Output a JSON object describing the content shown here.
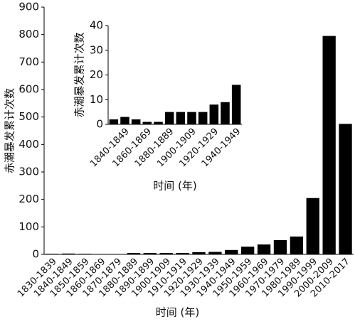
{
  "chart_data": [
    {
      "type": "bar",
      "xlabel": "时间 (年)",
      "ylabel": "赤潮暴发累计次数",
      "color": "#000000",
      "categories": [
        "1830-1839",
        "1840-1849",
        "1850-1859",
        "1860-1869",
        "1870-1879",
        "1880-1889",
        "1890-1899",
        "1900-1909",
        "1910-1919",
        "1920-1929",
        "1930-1939",
        "1940-1949",
        "1950-1959",
        "1960-1969",
        "1970-1979",
        "1980-1989",
        "1990-1999",
        "2000-2009",
        "2010-2017"
      ],
      "values": [
        2,
        3,
        2,
        1,
        1,
        5,
        5,
        5,
        5,
        8,
        9,
        16,
        28,
        36,
        52,
        65,
        205,
        795,
        475
      ],
      "ylim": [
        0,
        900
      ],
      "yticks": [
        0,
        100,
        200,
        300,
        400,
        500,
        600,
        700,
        800,
        900
      ]
    },
    {
      "type": "bar",
      "xlabel": "时间 (年)",
      "ylabel": "赤潮暴发累计次数",
      "color": "#000000",
      "categories": [
        null,
        "1840-1849",
        null,
        "1860-1869",
        null,
        "1880-1889",
        null,
        "1900-1909",
        null,
        "1920-1929",
        null,
        "1940-1949"
      ],
      "values": [
        2,
        3,
        2,
        1,
        1,
        5,
        5,
        5,
        5,
        8,
        9,
        16
      ],
      "ylim": [
        0,
        40
      ],
      "yticks": [
        0,
        10,
        20,
        30,
        40
      ]
    }
  ]
}
